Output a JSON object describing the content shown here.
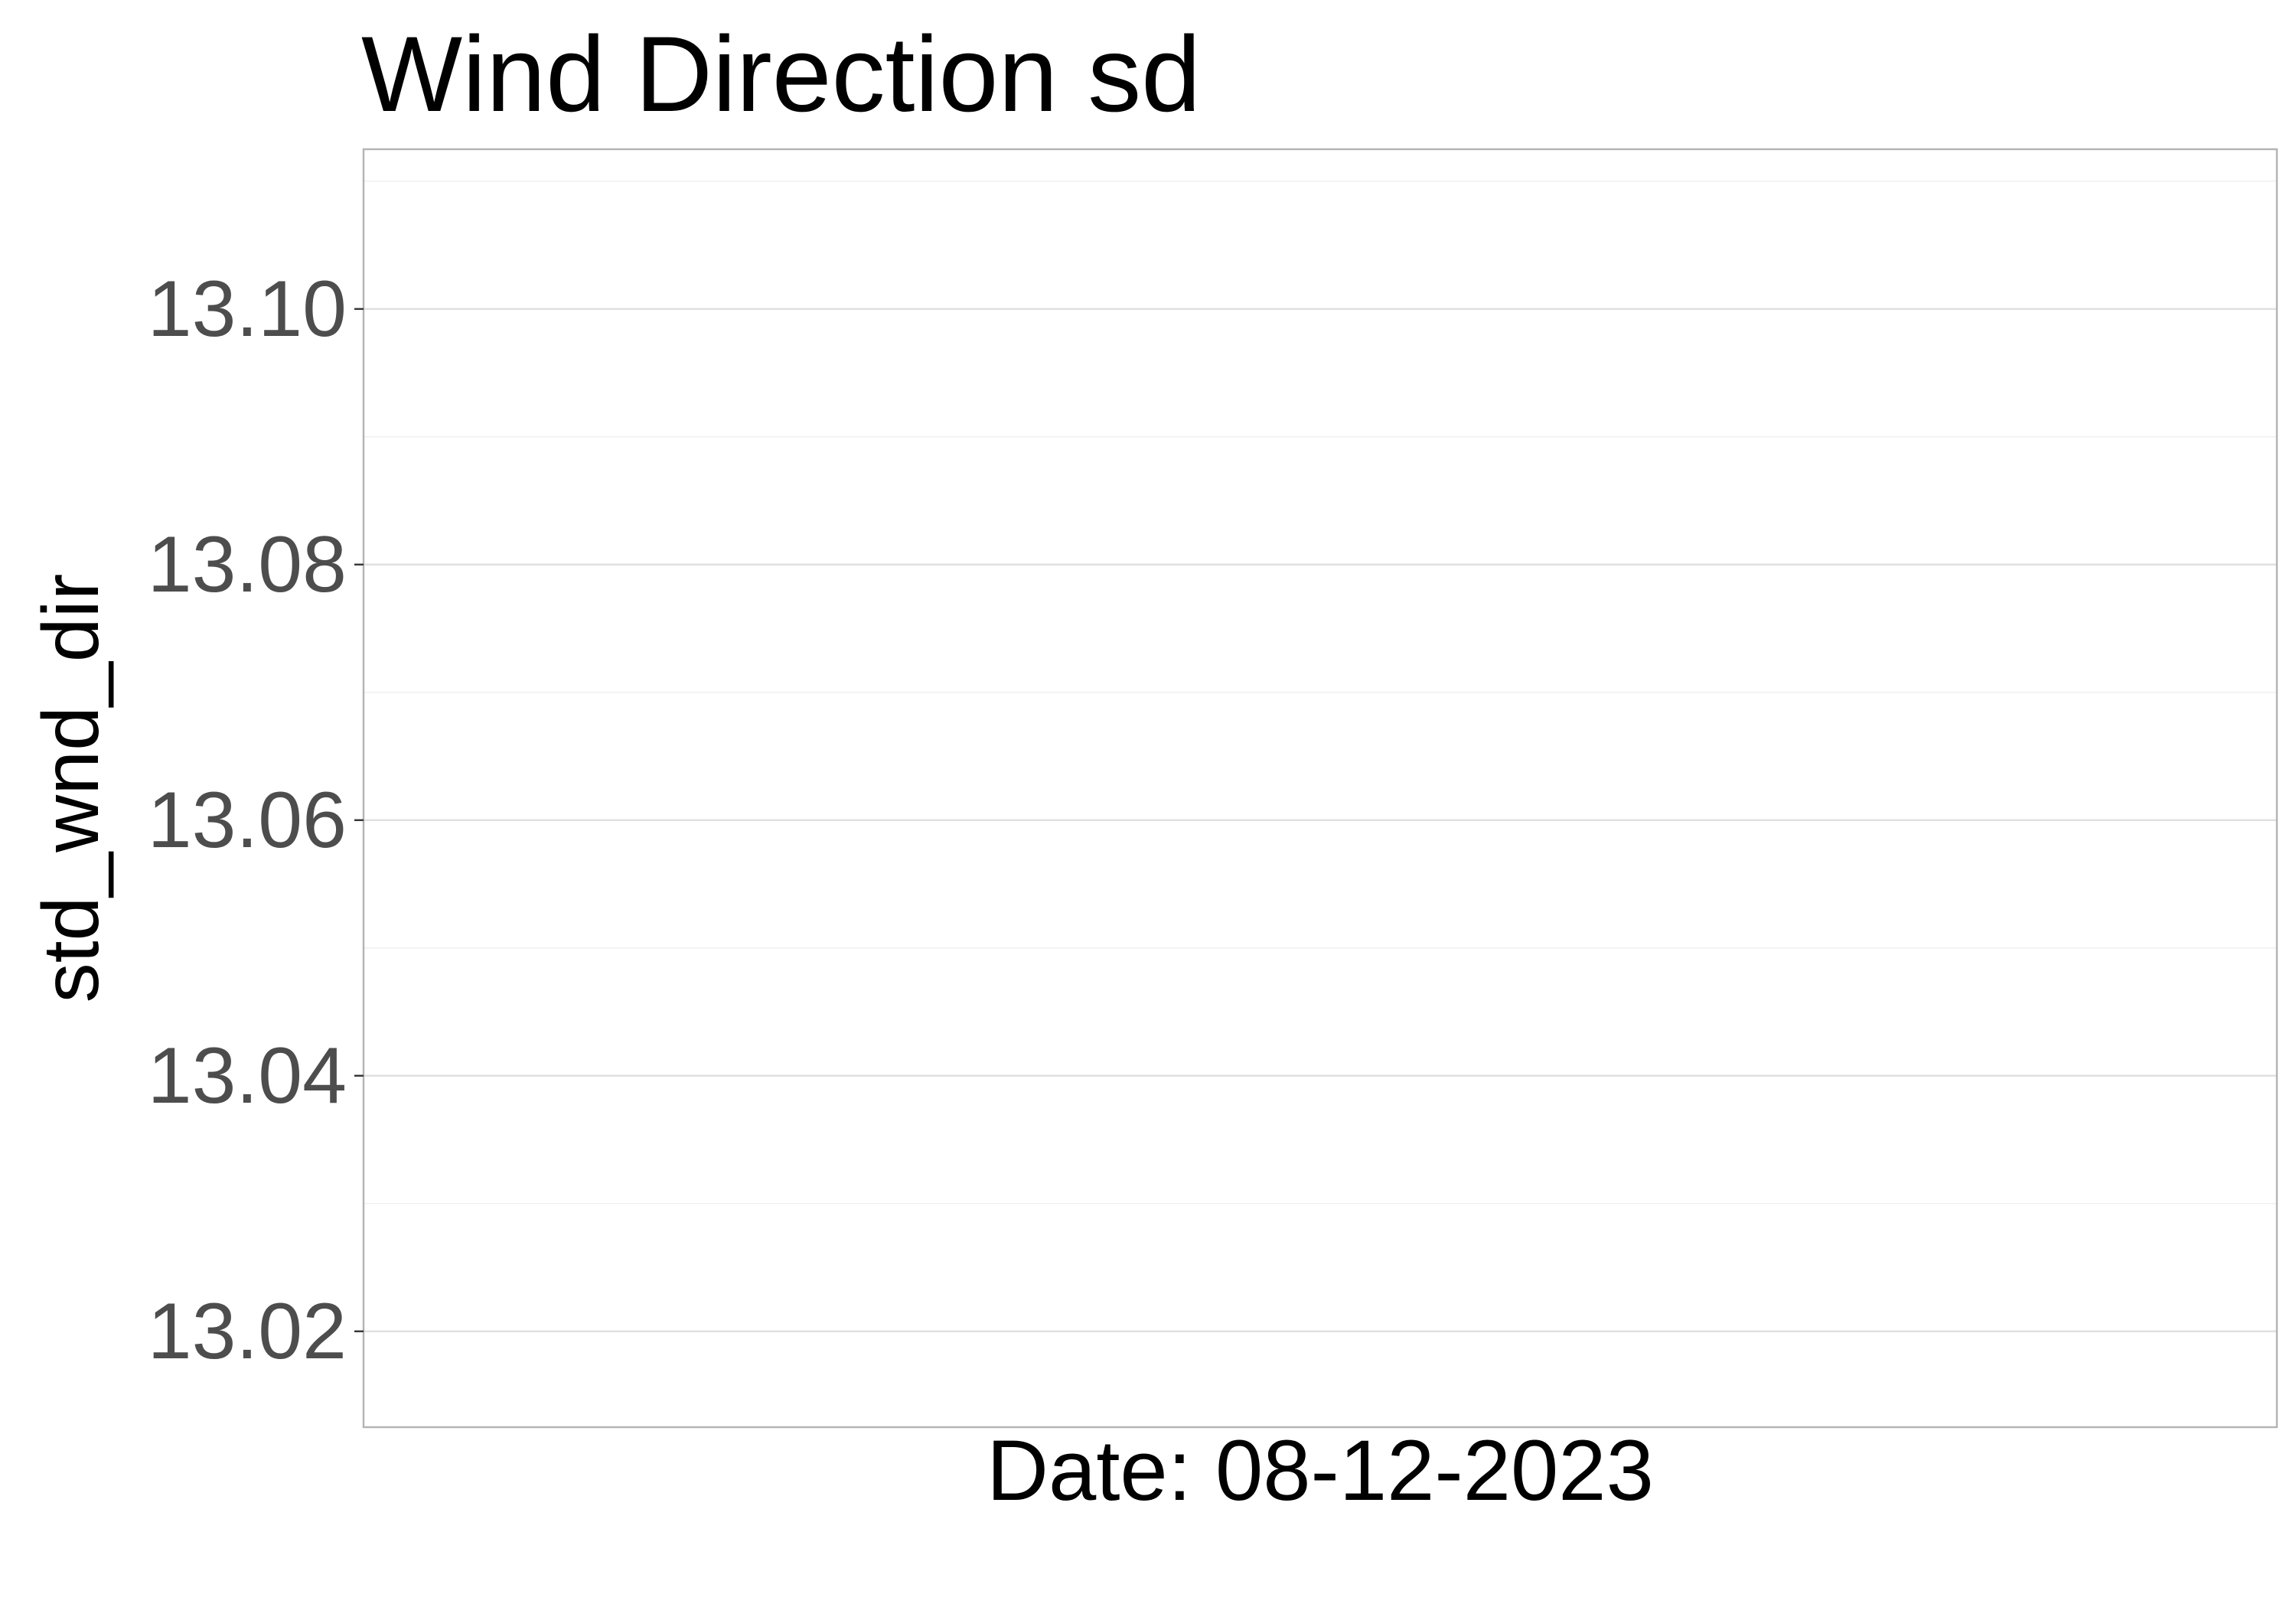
{
  "chart_data": {
    "type": "scatter",
    "title": "Wind Direction sd",
    "xlabel": "Date: 08-12-2023",
    "ylabel": "std_wnd_dir",
    "ylim": [
      13.0125,
      13.1125
    ],
    "y_ticks": [
      13.02,
      13.04,
      13.06,
      13.08,
      13.1
    ],
    "y_tick_labels": [
      "13.02",
      "13.04",
      "13.06",
      "13.08",
      "13.10"
    ],
    "y_minor_ticks": [
      13.03,
      13.05,
      13.07,
      13.09,
      13.11
    ],
    "grid": true,
    "x_ticks": [],
    "series": []
  }
}
